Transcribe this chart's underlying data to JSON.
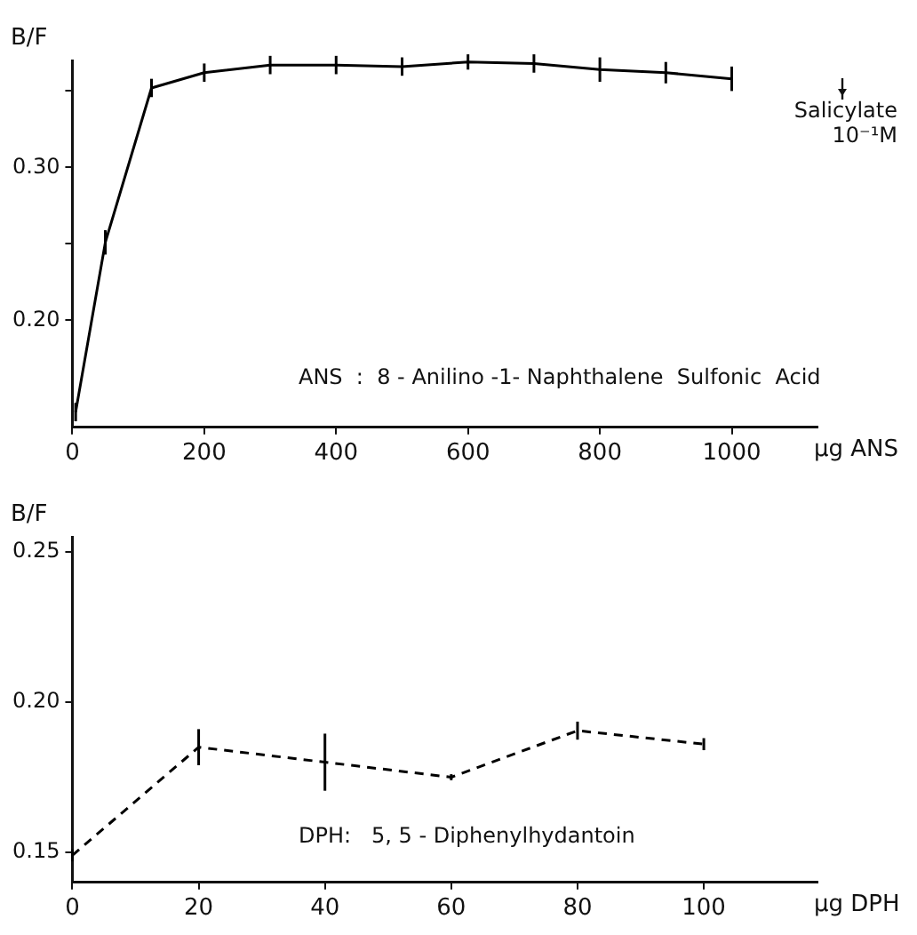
{
  "chart_data": [
    {
      "type": "line",
      "ylabel": "B/F",
      "xlabel": "µg ANS",
      "x": [
        5,
        50,
        120,
        200,
        300,
        400,
        500,
        600,
        700,
        800,
        900,
        1000
      ],
      "series": [
        {
          "color": "#000000",
          "values": [
            0.14,
            0.251,
            0.352,
            0.362,
            0.367,
            0.367,
            0.366,
            0.369,
            0.368,
            0.364,
            0.362,
            0.358
          ],
          "errors": [
            0.006,
            0.008,
            0.006,
            0.006,
            0.006,
            0.006,
            0.006,
            0.005,
            0.006,
            0.008,
            0.007,
            0.008
          ]
        }
      ],
      "xlim": [
        0,
        1130
      ],
      "xticks": [
        0,
        200,
        400,
        600,
        800,
        1000
      ],
      "ylim": [
        0.13,
        0.37
      ],
      "yticks": [
        {
          "value": 0.2,
          "label": "0.20"
        },
        {
          "value": 0.25,
          "label": null
        },
        {
          "value": 0.3,
          "label": "0.30"
        },
        {
          "value": 0.35,
          "label": null
        }
      ],
      "annotations": [
        "Salicylate\n10⁻¹M",
        "ANS  :  8 - Anilino -1- Naphthalene  Sulfonic  Acid"
      ],
      "grid": false,
      "legend": false,
      "marker": "none",
      "line_style": "solid"
    },
    {
      "type": "line",
      "ylabel": "B/F",
      "xlabel": "µg DPH",
      "x": [
        0,
        20,
        40,
        60,
        80,
        100
      ],
      "series": [
        {
          "color": "#000000",
          "values": [
            0.149,
            0.185,
            0.18,
            0.175,
            0.1905,
            0.186
          ],
          "errors": [
            0.002,
            0.006,
            0.0095,
            0.001,
            0.003,
            0.002
          ]
        }
      ],
      "xlim": [
        0,
        118
      ],
      "xticks": [
        0,
        20,
        40,
        60,
        80,
        100
      ],
      "ylim": [
        0.14,
        0.255
      ],
      "yticks": [
        {
          "value": 0.15,
          "label": "0.15"
        },
        {
          "value": 0.2,
          "label": "0.20"
        },
        {
          "value": 0.25,
          "label": "0.25"
        }
      ],
      "annotations": [
        "DPH:   5, 5 - Diphenylhydantoin"
      ],
      "grid": false,
      "legend": false,
      "marker": "none",
      "line_style": "dashed"
    }
  ]
}
